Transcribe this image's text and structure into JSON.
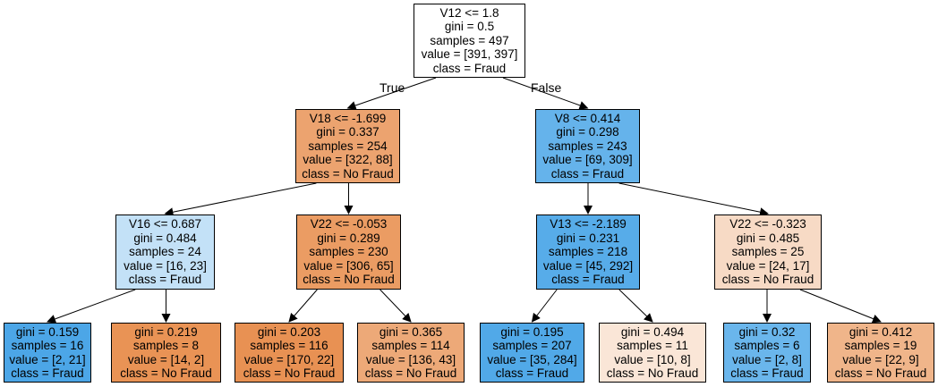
{
  "tree": {
    "edge_labels": {
      "true_label": "True",
      "false_label": "False"
    },
    "nodes": [
      {
        "id": "n0",
        "split": "V12 <= 1.8",
        "gini": "gini = 0.5",
        "samples": "samples = 497",
        "value": "value = [391, 397]",
        "class": "class = Fraud",
        "color": "#ffffff"
      },
      {
        "id": "n1",
        "split": "V18 <= -1.699",
        "gini": "gini = 0.337",
        "samples": "samples = 254",
        "value": "value = [322, 88]",
        "class": "class = No Fraud",
        "color": "#eca36f"
      },
      {
        "id": "n2",
        "split": "V8 <= 0.414",
        "gini": "gini = 0.298",
        "samples": "samples = 243",
        "value": "value = [69, 309]",
        "class": "class = Fraud",
        "color": "#65b3eb"
      },
      {
        "id": "n3",
        "split": "V16 <= 0.687",
        "gini": "gini = 0.484",
        "samples": "samples = 24",
        "value": "value = [16, 23]",
        "class": "class = Fraud",
        "color": "#c3e1f7"
      },
      {
        "id": "n4",
        "split": "V22 <= -0.053",
        "gini": "gini = 0.289",
        "samples": "samples = 230",
        "value": "value = [306, 65]",
        "class": "class = No Fraud",
        "color": "#eb9c63"
      },
      {
        "id": "n5",
        "split": "V13 <= -2.189",
        "gini": "gini = 0.231",
        "samples": "samples = 218",
        "value": "value = [45, 292]",
        "class": "class = Fraud",
        "color": "#57ace9"
      },
      {
        "id": "n6",
        "split": "V22 <= -0.323",
        "gini": "gini = 0.485",
        "samples": "samples = 25",
        "value": "value = [24, 17]",
        "class": "class = No Fraud",
        "color": "#f7dac5"
      },
      {
        "id": "n7",
        "split": "",
        "gini": "gini = 0.159",
        "samples": "samples = 16",
        "value": "value = [2, 21]",
        "class": "class = Fraud",
        "color": "#4ca6e7"
      },
      {
        "id": "n8",
        "split": "",
        "gini": "gini = 0.219",
        "samples": "samples = 8",
        "value": "value = [14, 2]",
        "class": "class = No Fraud",
        "color": "#e99355"
      },
      {
        "id": "n9",
        "split": "",
        "gini": "gini = 0.203",
        "samples": "samples = 116",
        "value": "value = [170, 22]",
        "class": "class = No Fraud",
        "color": "#e89153"
      },
      {
        "id": "n10",
        "split": "",
        "gini": "gini = 0.365",
        "samples": "samples = 114",
        "value": "value = [136, 43]",
        "class": "class = No Fraud",
        "color": "#eda978"
      },
      {
        "id": "n11",
        "split": "",
        "gini": "gini = 0.195",
        "samples": "samples = 207",
        "value": "value = [35, 284]",
        "class": "class = Fraud",
        "color": "#51a9e8"
      },
      {
        "id": "n12",
        "split": "",
        "gini": "gini = 0.494",
        "samples": "samples = 11",
        "value": "value = [10, 8]",
        "class": "class = No Fraud",
        "color": "#fae6d7"
      },
      {
        "id": "n13",
        "split": "",
        "gini": "gini = 0.32",
        "samples": "samples = 6",
        "value": "value = [2, 8]",
        "class": "class = Fraud",
        "color": "#6ab6ec"
      },
      {
        "id": "n14",
        "split": "",
        "gini": "gini = 0.412",
        "samples": "samples = 19",
        "value": "value = [22, 9]",
        "class": "class = No Fraud",
        "color": "#f0b58a"
      }
    ]
  }
}
